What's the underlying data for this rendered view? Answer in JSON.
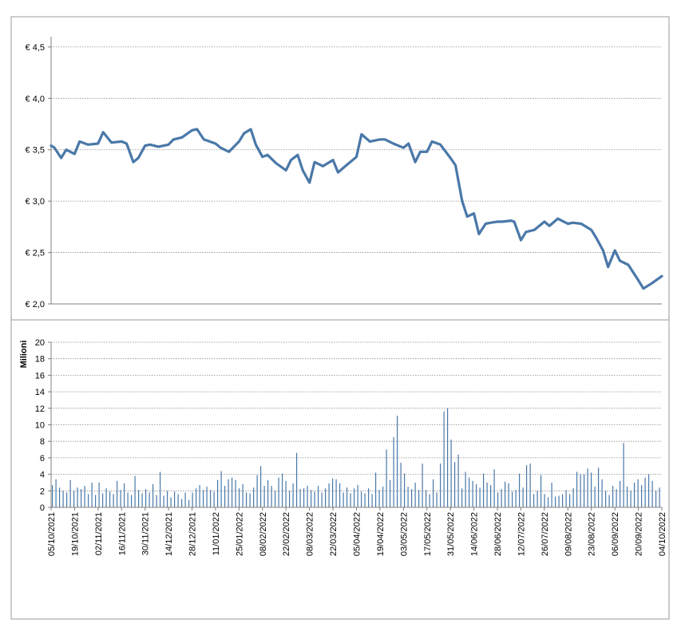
{
  "chart_data": [
    {
      "type": "line",
      "title": "",
      "xlabel": "",
      "ylabel": "",
      "ylim": [
        2.0,
        4.6
      ],
      "yticks": [
        "€ 2,0",
        "€ 2,5",
        "€ 3,0",
        "€ 3,5",
        "€ 4,0",
        "€ 4,5"
      ],
      "grid": true,
      "line_color": "#4a78a8",
      "points": [
        {
          "x": "05/10/2021",
          "y": 3.54
        },
        {
          "x": "07/10/2021",
          "y": 3.52
        },
        {
          "x": "11/10/2021",
          "y": 3.42
        },
        {
          "x": "14/10/2021",
          "y": 3.5
        },
        {
          "x": "19/10/2021",
          "y": 3.46
        },
        {
          "x": "22/10/2021",
          "y": 3.58
        },
        {
          "x": "27/10/2021",
          "y": 3.55
        },
        {
          "x": "02/11/2021",
          "y": 3.56
        },
        {
          "x": "05/11/2021",
          "y": 3.67
        },
        {
          "x": "10/11/2021",
          "y": 3.57
        },
        {
          "x": "16/11/2021",
          "y": 3.58
        },
        {
          "x": "19/11/2021",
          "y": 3.56
        },
        {
          "x": "23/11/2021",
          "y": 3.38
        },
        {
          "x": "26/11/2021",
          "y": 3.42
        },
        {
          "x": "30/11/2021",
          "y": 3.54
        },
        {
          "x": "03/12/2021",
          "y": 3.55
        },
        {
          "x": "08/12/2021",
          "y": 3.53
        },
        {
          "x": "14/12/2021",
          "y": 3.55
        },
        {
          "x": "17/12/2021",
          "y": 3.6
        },
        {
          "x": "22/12/2021",
          "y": 3.62
        },
        {
          "x": "28/12/2021",
          "y": 3.69
        },
        {
          "x": "31/12/2021",
          "y": 3.7
        },
        {
          "x": "04/01/2022",
          "y": 3.6
        },
        {
          "x": "11/01/2022",
          "y": 3.56
        },
        {
          "x": "14/01/2022",
          "y": 3.52
        },
        {
          "x": "19/01/2022",
          "y": 3.48
        },
        {
          "x": "25/01/2022",
          "y": 3.58
        },
        {
          "x": "28/01/2022",
          "y": 3.66
        },
        {
          "x": "01/02/2022",
          "y": 3.7
        },
        {
          "x": "04/02/2022",
          "y": 3.55
        },
        {
          "x": "08/02/2022",
          "y": 3.43
        },
        {
          "x": "11/02/2022",
          "y": 3.45
        },
        {
          "x": "16/02/2022",
          "y": 3.37
        },
        {
          "x": "22/02/2022",
          "y": 3.3
        },
        {
          "x": "25/02/2022",
          "y": 3.4
        },
        {
          "x": "01/03/2022",
          "y": 3.45
        },
        {
          "x": "04/03/2022",
          "y": 3.3
        },
        {
          "x": "08/03/2022",
          "y": 3.18
        },
        {
          "x": "11/03/2022",
          "y": 3.38
        },
        {
          "x": "16/03/2022",
          "y": 3.34
        },
        {
          "x": "22/03/2022",
          "y": 3.4
        },
        {
          "x": "25/03/2022",
          "y": 3.28
        },
        {
          "x": "30/03/2022",
          "y": 3.35
        },
        {
          "x": "05/04/2022",
          "y": 3.43
        },
        {
          "x": "08/04/2022",
          "y": 3.65
        },
        {
          "x": "13/04/2022",
          "y": 3.58
        },
        {
          "x": "19/04/2022",
          "y": 3.6
        },
        {
          "x": "22/04/2022",
          "y": 3.6
        },
        {
          "x": "27/04/2022",
          "y": 3.56
        },
        {
          "x": "03/05/2022",
          "y": 3.52
        },
        {
          "x": "06/05/2022",
          "y": 3.56
        },
        {
          "x": "10/05/2022",
          "y": 3.38
        },
        {
          "x": "13/05/2022",
          "y": 3.48
        },
        {
          "x": "17/05/2022",
          "y": 3.48
        },
        {
          "x": "20/05/2022",
          "y": 3.58
        },
        {
          "x": "25/05/2022",
          "y": 3.55
        },
        {
          "x": "31/05/2022",
          "y": 3.42
        },
        {
          "x": "03/06/2022",
          "y": 3.35
        },
        {
          "x": "07/06/2022",
          "y": 3.0
        },
        {
          "x": "10/06/2022",
          "y": 2.85
        },
        {
          "x": "14/06/2022",
          "y": 2.88
        },
        {
          "x": "17/06/2022",
          "y": 2.68
        },
        {
          "x": "21/06/2022",
          "y": 2.78
        },
        {
          "x": "24/06/2022",
          "y": 2.79
        },
        {
          "x": "28/06/2022",
          "y": 2.8
        },
        {
          "x": "01/07/2022",
          "y": 2.8
        },
        {
          "x": "06/07/2022",
          "y": 2.81
        },
        {
          "x": "08/07/2022",
          "y": 2.8
        },
        {
          "x": "12/07/2022",
          "y": 2.62
        },
        {
          "x": "15/07/2022",
          "y": 2.7
        },
        {
          "x": "20/07/2022",
          "y": 2.72
        },
        {
          "x": "26/07/2022",
          "y": 2.8
        },
        {
          "x": "29/07/2022",
          "y": 2.76
        },
        {
          "x": "03/08/2022",
          "y": 2.83
        },
        {
          "x": "09/08/2022",
          "y": 2.78
        },
        {
          "x": "12/08/2022",
          "y": 2.79
        },
        {
          "x": "17/08/2022",
          "y": 2.78
        },
        {
          "x": "23/08/2022",
          "y": 2.72
        },
        {
          "x": "26/08/2022",
          "y": 2.64
        },
        {
          "x": "30/08/2022",
          "y": 2.52
        },
        {
          "x": "02/09/2022",
          "y": 2.36
        },
        {
          "x": "06/09/2022",
          "y": 2.52
        },
        {
          "x": "09/09/2022",
          "y": 2.42
        },
        {
          "x": "14/09/2022",
          "y": 2.38
        },
        {
          "x": "20/09/2022",
          "y": 2.23
        },
        {
          "x": "23/09/2022",
          "y": 2.15
        },
        {
          "x": "28/09/2022",
          "y": 2.2
        },
        {
          "x": "04/10/2022",
          "y": 2.27
        }
      ]
    },
    {
      "type": "bar",
      "title": "",
      "xlabel": "",
      "ylabel": "Milioni",
      "ylim": [
        0,
        20
      ],
      "yticks": [
        "0",
        "2",
        "4",
        "6",
        "8",
        "10",
        "12",
        "14",
        "16",
        "18",
        "20"
      ],
      "grid": true,
      "bar_color": "#4a78a8",
      "date_labels": [
        "05/10/2021",
        "19/10/2021",
        "02/11/2021",
        "16/11/2021",
        "30/11/2021",
        "14/12/2021",
        "28/12/2021",
        "11/01/2022",
        "25/01/2022",
        "08/02/2022",
        "22/02/2022",
        "08/03/2022",
        "22/03/2022",
        "05/04/2022",
        "19/04/2022",
        "03/05/2022",
        "17/05/2022",
        "31/05/2022",
        "14/06/2022",
        "28/06/2022",
        "12/07/2022",
        "26/07/2022",
        "09/08/2022",
        "23/08/2022",
        "06/09/2022",
        "20/09/2022",
        "04/10/2022"
      ],
      "values": [
        2.7,
        3.4,
        2.4,
        2.0,
        1.8,
        3.3,
        2.0,
        2.4,
        2.2,
        2.6,
        1.6,
        3.0,
        1.5,
        3.0,
        1.7,
        2.3,
        1.9,
        1.6,
        3.2,
        2.1,
        2.9,
        1.8,
        1.5,
        3.8,
        2.1,
        1.7,
        2.2,
        1.8,
        2.8,
        1.5,
        4.3,
        1.4,
        2.0,
        1.2,
        1.9,
        1.6,
        1.0,
        1.8,
        0.9,
        1.8,
        2.3,
        2.7,
        2.1,
        2.5,
        2.1,
        1.9,
        3.3,
        4.4,
        2.6,
        3.4,
        3.6,
        3.3,
        2.3,
        2.8,
        1.8,
        1.7,
        2.4,
        3.9,
        5.0,
        2.6,
        3.3,
        2.6,
        2.0,
        3.6,
        4.1,
        3.2,
        2.0,
        2.9,
        6.6,
        2.2,
        2.3,
        2.6,
        2.1,
        1.9,
        2.6,
        1.8,
        2.3,
        2.9,
        3.5,
        3.4,
        2.9,
        1.8,
        2.4,
        1.7,
        2.3,
        2.7,
        1.9,
        1.7,
        2.3,
        1.6,
        4.2,
        2.1,
        2.5,
        7.0,
        3.3,
        8.5,
        11.1,
        5.4,
        4.1,
        2.5,
        2.2,
        3.0,
        2.1,
        5.3,
        2.1,
        1.6,
        3.4,
        1.8,
        5.3,
        11.6,
        12.0,
        8.2,
        5.5,
        6.4,
        2.3,
        4.3,
        3.6,
        3.2,
        2.8,
        2.4,
        4.1,
        3.0,
        2.7,
        4.6,
        1.8,
        2.2,
        3.1,
        2.9,
        1.9,
        2.1,
        4.1,
        2.4,
        5.1,
        5.3,
        1.6,
        2.0,
        3.9,
        1.6,
        1.2,
        3.0,
        1.3,
        1.4,
        1.6,
        2.1,
        1.6,
        2.3,
        4.3,
        4.0,
        4.0,
        4.7,
        4.2,
        2.5,
        4.8,
        3.4,
        2.0,
        1.5,
        2.6,
        2.2,
        3.2,
        7.8,
        2.5,
        2.0,
        3.0,
        3.4,
        2.7,
        3.6,
        4.0,
        3.2,
        2.0,
        2.4
      ]
    }
  ]
}
